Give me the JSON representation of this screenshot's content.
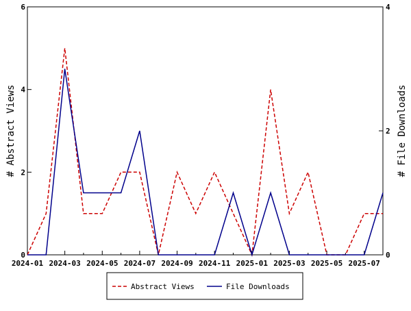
{
  "chart_data": {
    "type": "line",
    "x": [
      "2024-01",
      "2024-02",
      "2024-03",
      "2024-04",
      "2024-05",
      "2024-06",
      "2024-07",
      "2024-08",
      "2024-09",
      "2024-10",
      "2024-11",
      "2024-12",
      "2025-01",
      "2025-02",
      "2025-03",
      "2025-04",
      "2025-05",
      "2025-06",
      "2025-07",
      "2025-08"
    ],
    "x_ticks": [
      "2024-01",
      "2024-03",
      "2024-05",
      "2024-07",
      "2024-09",
      "2024-11",
      "2025-01",
      "2025-03",
      "2025-05",
      "2025-07"
    ],
    "xlim": [
      "2024-01",
      "2025-08"
    ],
    "y_left": {
      "label": "# Abstract Views",
      "lim": [
        0,
        6
      ],
      "ticks": [
        "0",
        "2",
        "4",
        "6"
      ]
    },
    "y_right": {
      "label": "# File Downloads",
      "lim": [
        0,
        4
      ],
      "ticks": [
        "0",
        "2",
        "4"
      ]
    },
    "series": [
      {
        "name": "Abstract Views",
        "axis": "left",
        "color": "#cc0000",
        "dash": "dashed",
        "values": [
          0,
          1,
          5,
          1,
          1,
          2,
          2,
          0,
          2,
          1,
          2,
          1,
          0,
          4,
          1,
          2,
          0,
          0,
          1,
          1
        ]
      },
      {
        "name": "File Downloads",
        "axis": "right",
        "color": "#00008b",
        "dash": "solid",
        "values": [
          0,
          0,
          3,
          1,
          1,
          1,
          2,
          0,
          0,
          0,
          0,
          1,
          0,
          1,
          0,
          0,
          0,
          0,
          0,
          1
        ]
      }
    ],
    "grid": false,
    "legend": "bottom-center"
  }
}
